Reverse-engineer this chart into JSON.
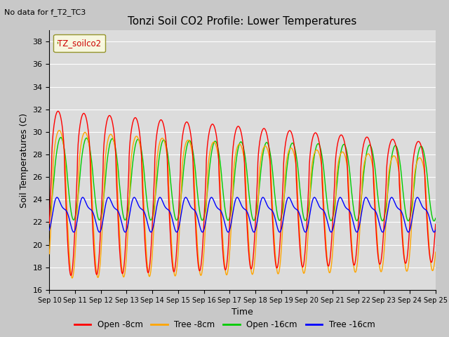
{
  "title": "Tonzi Soil CO2 Profile: Lower Temperatures",
  "subtitle": "No data for f_T2_TC3",
  "ylabel": "Soil Temperatures (C)",
  "xlabel": "Time",
  "ylim": [
    16,
    39
  ],
  "yticks": [
    16,
    18,
    20,
    22,
    24,
    26,
    28,
    30,
    32,
    34,
    36,
    38
  ],
  "xtick_labels": [
    "Sep 10",
    "Sep 11",
    "Sep 12",
    "Sep 13",
    "Sep 14",
    "Sep 15",
    "Sep 16",
    "Sep 17",
    "Sep 18",
    "Sep 19",
    "Sep 20",
    "Sep 21",
    "Sep 22",
    "Sep 23",
    "Sep 24",
    "Sep 25"
  ],
  "legend_label": "TZ_soilco2",
  "bg_color": "#dcdcdc",
  "fig_bg_color": "#c8c8c8",
  "colors": {
    "open_8cm": "#ff0000",
    "tree_8cm": "#ffa500",
    "open_16cm": "#00cc00",
    "tree_16cm": "#0000ff"
  },
  "n_points": 1440,
  "days": 15,
  "open_8_base": 27.0,
  "open_8_amp": 9.8,
  "open_8_amp_decay": 0.28,
  "open_8_phase": 0.55,
  "tree_8_base": 25.8,
  "tree_8_amp": 8.8,
  "tree_8_amp_decay": 0.25,
  "tree_8_phase": 0.85,
  "open_16_base": 26.2,
  "open_16_amp": 4.0,
  "open_16_amp_decay": 0.1,
  "open_16_phase": 1.2,
  "tree_16_base": 22.8,
  "tree_16_amp": 1.3,
  "tree_16_amp_decay": 0.0,
  "tree_16_phase": 0.9
}
